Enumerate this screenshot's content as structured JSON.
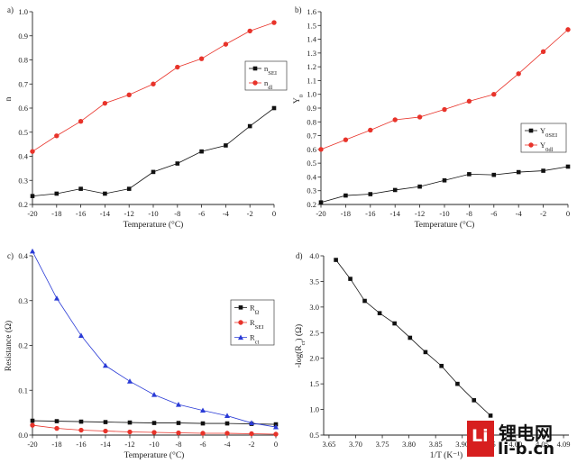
{
  "chart_data": [
    {
      "panel": "a)",
      "type": "line",
      "xlabel": "Temperature (°C)",
      "ylabel": "n",
      "xlim": [
        -20,
        0
      ],
      "ylim": [
        0.2,
        1.0
      ],
      "x_ticks": [
        "-20",
        "-18",
        "-16",
        "-14",
        "-12",
        "-10",
        "-8",
        "-6",
        "-4",
        "-2",
        "0"
      ],
      "y_ticks": [
        "0.2",
        "0.3",
        "0.4",
        "0.5",
        "0.6",
        "0.7",
        "0.8",
        "0.9",
        "1.0"
      ],
      "legend_position": "center-right",
      "series": [
        {
          "name": "n",
          "subscript": "SEI",
          "color": "#111111",
          "marker": "square",
          "x": [
            -20,
            -18,
            -16,
            -14,
            -12,
            -10,
            -8,
            -6,
            -4,
            -2,
            0
          ],
          "values": [
            0.235,
            0.245,
            0.265,
            0.245,
            0.265,
            0.335,
            0.37,
            0.42,
            0.445,
            0.525,
            0.6
          ]
        },
        {
          "name": "n",
          "subscript": "dl",
          "color": "#e8332a",
          "marker": "circle",
          "x": [
            -20,
            -18,
            -16,
            -14,
            -12,
            -10,
            -8,
            -6,
            -4,
            -2,
            0
          ],
          "values": [
            0.42,
            0.485,
            0.545,
            0.62,
            0.655,
            0.7,
            0.77,
            0.805,
            0.865,
            0.92,
            0.955
          ]
        }
      ]
    },
    {
      "panel": "b)",
      "type": "line",
      "xlabel": "Temperature (°C)",
      "ylabel": "Y",
      "ylabel_subscript": "0",
      "xlim": [
        -20,
        0
      ],
      "ylim": [
        0.2,
        1.6
      ],
      "x_ticks": [
        "-20",
        "-18",
        "-16",
        "-14",
        "-12",
        "-10",
        "-8",
        "-6",
        "-4",
        "-2",
        "0"
      ],
      "y_ticks": [
        "0.2",
        "0.3",
        "0.4",
        "0.5",
        "0.6",
        "0.7",
        "0.8",
        "0.9",
        "1.0",
        "1.1",
        "1.2",
        "1.3",
        "1.4",
        "1.5",
        "1.6"
      ],
      "legend_position": "center-right",
      "series": [
        {
          "name": "Y",
          "subscript": "0SEI",
          "color": "#111111",
          "marker": "square",
          "x": [
            -20,
            -18,
            -16,
            -14,
            -12,
            -10,
            -8,
            -6,
            -4,
            -2,
            0
          ],
          "values": [
            0.215,
            0.265,
            0.275,
            0.305,
            0.33,
            0.375,
            0.42,
            0.415,
            0.435,
            0.445,
            0.475
          ]
        },
        {
          "name": "Y",
          "subscript": "0dl",
          "color": "#e8332a",
          "marker": "circle",
          "x": [
            -20,
            -18,
            -16,
            -14,
            -12,
            -10,
            -8,
            -6,
            -4,
            -2,
            0
          ],
          "values": [
            0.6,
            0.67,
            0.74,
            0.815,
            0.835,
            0.89,
            0.95,
            1.0,
            1.15,
            1.31,
            1.47
          ]
        }
      ]
    },
    {
      "panel": "c)",
      "type": "line",
      "xlabel": "Temperature (°C)",
      "ylabel": "Resistance (Ω)",
      "xlim": [
        -20,
        0
      ],
      "ylim": [
        0.0,
        0.4
      ],
      "x_ticks": [
        "-20",
        "-18",
        "-16",
        "-14",
        "-12",
        "-10",
        "-8",
        "-6",
        "-4",
        "-2",
        "0"
      ],
      "y_ticks": [
        "0.0",
        "0.1",
        "0.2",
        "0.3",
        "0.4"
      ],
      "legend_position": "top-right",
      "series": [
        {
          "name": "R",
          "subscript": "Ω",
          "color": "#111111",
          "marker": "square",
          "x": [
            -20,
            -18,
            -16,
            -14,
            -12,
            -10,
            -8,
            -6,
            -4,
            -2,
            0
          ],
          "values": [
            0.032,
            0.031,
            0.03,
            0.029,
            0.028,
            0.027,
            0.027,
            0.026,
            0.026,
            0.025,
            0.024
          ]
        },
        {
          "name": "R",
          "subscript": "SEI",
          "color": "#e8332a",
          "marker": "circle",
          "x": [
            -20,
            -18,
            -16,
            -14,
            -12,
            -10,
            -8,
            -6,
            -4,
            -2,
            0
          ],
          "values": [
            0.022,
            0.015,
            0.011,
            0.009,
            0.007,
            0.006,
            0.005,
            0.004,
            0.004,
            0.003,
            0.002
          ]
        },
        {
          "name": "R",
          "subscript": "ct",
          "color": "#2a3bd6",
          "marker": "triangle",
          "x": [
            -20,
            -18,
            -16,
            -14,
            -12,
            -10,
            -8,
            -6,
            -4,
            -2,
            0
          ],
          "values": [
            0.41,
            0.305,
            0.222,
            0.155,
            0.12,
            0.09,
            0.068,
            0.055,
            0.043,
            0.027,
            0.018
          ]
        }
      ]
    },
    {
      "panel": "d)",
      "type": "line",
      "xlabel": "1/T (K⁻¹)",
      "ylabel": "-log(R",
      "ylabel_subscript": "ct",
      "ylabel_suffix": ") (Ω)",
      "xlim": [
        3.64,
        4.1
      ],
      "ylim": [
        0.5,
        4.0
      ],
      "x_ticks": [
        "3.65",
        "3.70",
        "3.75",
        "3.80",
        "3.85",
        "3.90",
        "3.95",
        "4.00",
        "4.05",
        "4.09"
      ],
      "y_ticks": [
        "0.5",
        "1.0",
        "1.5",
        "2.0",
        "2.5",
        "3.0",
        "3.5",
        "4.0"
      ],
      "series": [
        {
          "color": "#111111",
          "marker": "square",
          "x": [
            3.663,
            3.69,
            3.717,
            3.745,
            3.773,
            3.802,
            3.831,
            3.861,
            3.891,
            3.922,
            3.953
          ],
          "values": [
            3.92,
            3.55,
            3.12,
            2.88,
            2.68,
            2.4,
            2.12,
            1.85,
            1.5,
            1.18,
            0.88
          ]
        }
      ]
    }
  ],
  "watermark": {
    "logo_glyph": "Li",
    "chinese_text": "锂电网",
    "domain_text": "li-b.cn",
    "brand_color": "#d71f1f"
  }
}
